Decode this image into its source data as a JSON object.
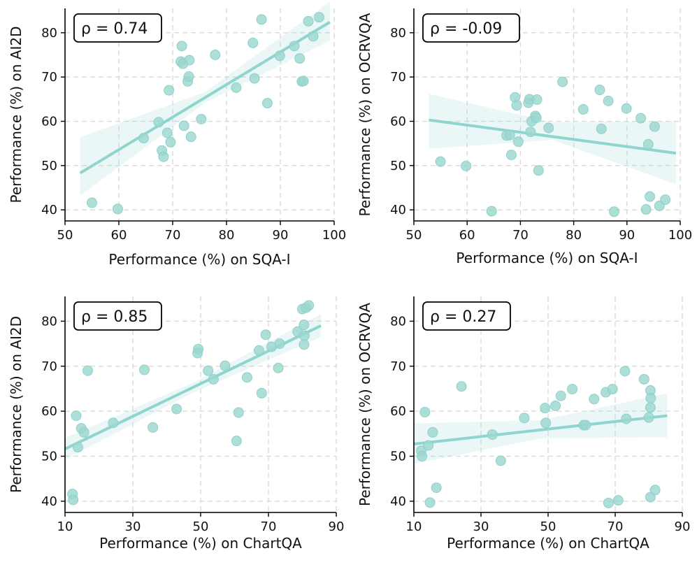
{
  "chart_data": [
    {
      "type": "scatter",
      "xlabel": "Performance (%) on SQA-I",
      "ylabel": "Performance (%) on AI2D",
      "xlim": [
        50,
        100
      ],
      "ylim": [
        37.5,
        85.5
      ],
      "xticks": [
        "50",
        "60",
        "70",
        "80",
        "90",
        "100"
      ],
      "xtick_values": [
        50,
        60,
        70,
        80,
        90,
        100
      ],
      "yticks": [
        "40",
        "50",
        "60",
        "70",
        "80"
      ],
      "ytick_values": [
        40,
        50,
        60,
        70,
        80
      ],
      "rho": "ρ = 0.74",
      "fit": {
        "x0": 52.8,
        "y0": 48.3,
        "x1": 99.2,
        "y1": 82.4
      },
      "band": {
        "lower": [
          [
            52.8,
            43.2
          ],
          [
            76,
            64.2
          ],
          [
            99.2,
            78.2
          ]
        ],
        "upper": [
          [
            52.8,
            56.4
          ],
          [
            76,
            66.6
          ],
          [
            99.2,
            87.0
          ]
        ]
      },
      "points": [
        [
          55,
          41.6
        ],
        [
          59.8,
          40.2
        ],
        [
          64.6,
          56.2
        ],
        [
          67.4,
          59.8
        ],
        [
          68,
          53.4
        ],
        [
          68.3,
          52
        ],
        [
          69,
          57.4
        ],
        [
          69.3,
          67
        ],
        [
          69.6,
          55.3
        ],
        [
          71.5,
          73.5
        ],
        [
          71.7,
          77
        ],
        [
          71.9,
          73
        ],
        [
          72.1,
          59
        ],
        [
          72.8,
          69
        ],
        [
          73,
          70.1
        ],
        [
          73.1,
          73.8
        ],
        [
          73.4,
          56.5
        ],
        [
          75.3,
          60.5
        ],
        [
          77.9,
          75
        ],
        [
          81.8,
          67.6
        ],
        [
          84.9,
          77.7
        ],
        [
          85.2,
          69.7
        ],
        [
          86.5,
          83
        ],
        [
          87.6,
          64.1
        ],
        [
          89.9,
          74.8
        ],
        [
          92.6,
          77
        ],
        [
          93.6,
          74.2
        ],
        [
          94,
          69
        ],
        [
          94.3,
          69.1
        ],
        [
          95.2,
          82.6
        ],
        [
          96.1,
          79.2
        ],
        [
          97.2,
          83.5
        ]
      ]
    },
    {
      "type": "scatter",
      "xlabel": "Performance (%) on SQA-I",
      "ylabel": "Performance (%) on OCRVQA",
      "xlim": [
        50,
        100
      ],
      "ylim": [
        37.5,
        85.5
      ],
      "xticks": [
        "50",
        "60",
        "70",
        "80",
        "90",
        "100"
      ],
      "xtick_values": [
        50,
        60,
        70,
        80,
        90,
        100
      ],
      "yticks": [
        "40",
        "50",
        "60",
        "70",
        "80"
      ],
      "ytick_values": [
        40,
        50,
        60,
        70,
        80
      ],
      "rho": "ρ = -0.09",
      "fit": {
        "x0": 52.8,
        "y0": 60.3,
        "x1": 99.2,
        "y1": 52.8
      },
      "band": {
        "lower": [
          [
            52.8,
            53.8
          ],
          [
            76,
            55.8
          ],
          [
            99.2,
            45.8
          ]
        ],
        "upper": [
          [
            52.8,
            66.2
          ],
          [
            76,
            59.8
          ],
          [
            99.2,
            60.0
          ]
        ]
      },
      "points": [
        [
          55,
          50.9
        ],
        [
          59.8,
          49.9
        ],
        [
          64.6,
          39.7
        ],
        [
          67.4,
          56.8
        ],
        [
          68,
          56.9
        ],
        [
          68.3,
          52.4
        ],
        [
          69,
          65.4
        ],
        [
          69.3,
          63.6
        ],
        [
          69.6,
          55.4
        ],
        [
          71.5,
          64.2
        ],
        [
          71.7,
          65
        ],
        [
          71.9,
          57.6
        ],
        [
          72.1,
          60
        ],
        [
          72.8,
          61.2
        ],
        [
          73,
          60.8
        ],
        [
          73.1,
          64.9
        ],
        [
          73.4,
          48.9
        ],
        [
          75.3,
          58.5
        ],
        [
          77.9,
          68.9
        ],
        [
          81.8,
          62.7
        ],
        [
          84.9,
          67.1
        ],
        [
          85.2,
          58.3
        ],
        [
          86.5,
          64.6
        ],
        [
          87.6,
          39.6
        ],
        [
          89.9,
          62.9
        ],
        [
          92.6,
          60.7
        ],
        [
          93.6,
          40.1
        ],
        [
          94,
          54.8
        ],
        [
          94.3,
          43
        ],
        [
          95.2,
          58.8
        ],
        [
          96.1,
          40.9
        ],
        [
          97.2,
          42.3
        ]
      ]
    },
    {
      "type": "scatter",
      "xlabel": "Performance (%) on ChartQA",
      "ylabel": "Performance (%) on AI2D",
      "xlim": [
        10,
        90
      ],
      "ylim": [
        37.5,
        85.5
      ],
      "xticks": [
        "10",
        "30",
        "50",
        "70",
        "90"
      ],
      "xtick_values": [
        10,
        30,
        50,
        70,
        90
      ],
      "yticks": [
        "40",
        "50",
        "60",
        "70",
        "80"
      ],
      "ytick_values": [
        40,
        50,
        60,
        70,
        80
      ],
      "rho": "ρ = 0.85",
      "fit": {
        "x0": 10,
        "y0": 51.6,
        "x1": 85.5,
        "y1": 79
      },
      "band": {
        "lower": [
          [
            10,
            49.3
          ],
          [
            48,
            64.2
          ],
          [
            85.5,
            76.5
          ]
        ],
        "upper": [
          [
            10,
            54.0
          ],
          [
            48,
            66.4
          ],
          [
            85.5,
            81.6
          ]
        ]
      },
      "points": [
        [
          12.2,
          41.6
        ],
        [
          12.4,
          40.3
        ],
        [
          13.3,
          59
        ],
        [
          13.8,
          52
        ],
        [
          14.8,
          56.2
        ],
        [
          15.6,
          55.3
        ],
        [
          16.7,
          69
        ],
        [
          24.2,
          57.4
        ],
        [
          33.4,
          69.2
        ],
        [
          35.9,
          56.4
        ],
        [
          42.9,
          60.5
        ],
        [
          49.3,
          73.8
        ],
        [
          49.1,
          72.9
        ],
        [
          52.2,
          69
        ],
        [
          53.8,
          67.1
        ],
        [
          57.2,
          70.1
        ],
        [
          61.2,
          59.7
        ],
        [
          60.6,
          53.4
        ],
        [
          63.7,
          67.5
        ],
        [
          67.2,
          73.5
        ],
        [
          68,
          64
        ],
        [
          69.2,
          77
        ],
        [
          70.9,
          74.3
        ],
        [
          72.9,
          69.6
        ],
        [
          73.3,
          75
        ],
        [
          78.6,
          77.7
        ],
        [
          80,
          82.7
        ],
        [
          80.5,
          79.2
        ],
        [
          80.6,
          76.8
        ],
        [
          80.5,
          74.8
        ],
        [
          81.1,
          83
        ],
        [
          81.9,
          83.5
        ]
      ]
    },
    {
      "type": "scatter",
      "xlabel": "Performance (%) on ChartQA",
      "ylabel": "Performance (%) on OCRVQA",
      "xlim": [
        10,
        90
      ],
      "ylim": [
        37.5,
        85.5
      ],
      "xticks": [
        "10",
        "30",
        "50",
        "70",
        "90"
      ],
      "xtick_values": [
        10,
        30,
        50,
        70,
        90
      ],
      "yticks": [
        "40",
        "50",
        "60",
        "70",
        "80"
      ],
      "ytick_values": [
        40,
        50,
        60,
        70,
        80
      ],
      "rho": "ρ = 0.27",
      "fit": {
        "x0": 10,
        "y0": 52.7,
        "x1": 85.5,
        "y1": 59
      },
      "band": {
        "lower": [
          [
            10,
            48.3
          ],
          [
            48,
            54.0
          ],
          [
            85.5,
            54.2
          ]
        ],
        "upper": [
          [
            10,
            57.3
          ],
          [
            48,
            58.0
          ],
          [
            85.5,
            64.0
          ]
        ]
      },
      "points": [
        [
          12.2,
          51.2
        ],
        [
          12.4,
          50
        ],
        [
          13.3,
          59.8
        ],
        [
          14.3,
          52.4
        ],
        [
          14.8,
          39.7
        ],
        [
          15.6,
          55.3
        ],
        [
          16.7,
          43
        ],
        [
          24.2,
          65.5
        ],
        [
          33.4,
          54.8
        ],
        [
          35.9,
          49
        ],
        [
          42.9,
          58.5
        ],
        [
          49.3,
          57.4
        ],
        [
          49.1,
          60.7
        ],
        [
          52.2,
          61.2
        ],
        [
          53.8,
          63.4
        ],
        [
          57.2,
          64.9
        ],
        [
          60.6,
          56.9
        ],
        [
          61.2,
          56.9
        ],
        [
          63.7,
          62.7
        ],
        [
          67.2,
          64.2
        ],
        [
          68,
          39.6
        ],
        [
          69.2,
          64.9
        ],
        [
          70.9,
          40.2
        ],
        [
          72.9,
          68.9
        ],
        [
          73.3,
          58.3
        ],
        [
          78.6,
          67.1
        ],
        [
          80,
          58.6
        ],
        [
          80.5,
          64.6
        ],
        [
          80.6,
          62.9
        ],
        [
          80.5,
          60.8
        ],
        [
          80.5,
          40.9
        ],
        [
          81.9,
          42.5
        ]
      ]
    }
  ]
}
